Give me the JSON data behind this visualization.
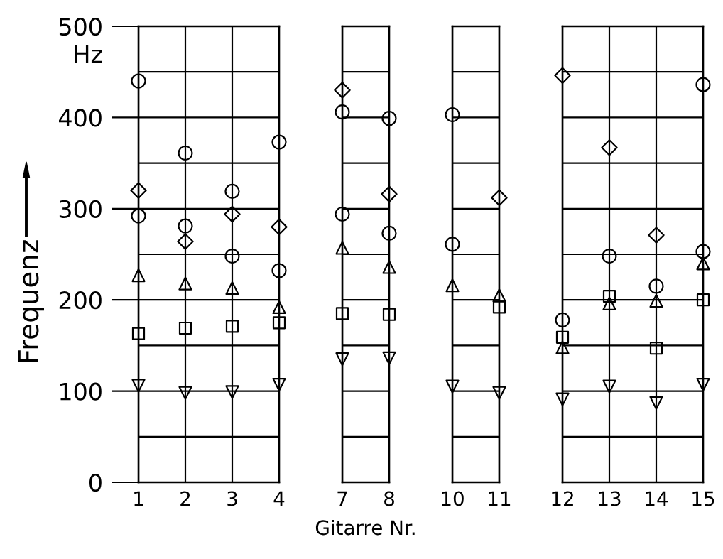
{
  "chart_data": [
    {
      "type": "scatter",
      "ylabel": "Frequenz",
      "annotations": [
        "Hz"
      ],
      "x": [
        1,
        2,
        3,
        4
      ],
      "xlim": [
        1,
        4
      ],
      "xticks": [
        1,
        2,
        3,
        4
      ],
      "ylim": [
        0,
        500
      ],
      "yticks": [
        0,
        {
          "value": 50,
          "label": null
        },
        100,
        {
          "value": 150,
          "label": null
        },
        200,
        {
          "value": 250,
          "label": null
        },
        300,
        {
          "value": 350,
          "label": null
        },
        400,
        {
          "value": 450,
          "label": null
        },
        500
      ],
      "grid": true,
      "series": [
        {
          "marker": "circle",
          "color": "#000000",
          "values": [
            440,
            361,
            319,
            373
          ]
        },
        {
          "marker": "diamond",
          "color": "#000000",
          "values": [
            320,
            264,
            294,
            280
          ]
        },
        {
          "marker": "circle",
          "color": "#000000",
          "values": [
            292,
            281,
            248,
            232
          ]
        },
        {
          "marker": "triangle",
          "color": "#000000",
          "values": [
            227,
            218,
            213,
            192
          ]
        },
        {
          "marker": "square",
          "color": "#000000",
          "values": [
            163,
            169,
            171,
            175
          ]
        },
        {
          "marker": "triangle_down",
          "color": "#000000",
          "values": [
            106,
            98,
            99,
            107
          ]
        }
      ]
    },
    {
      "type": "scatter",
      "xlabel": "Gitarre Nr.",
      "x": [
        7,
        8
      ],
      "xlim": [
        7,
        8
      ],
      "xticks": [
        7,
        8
      ],
      "ylim": [
        0,
        500
      ],
      "yticks": [
        0,
        {
          "value": 50,
          "label": null
        },
        100,
        {
          "value": 150,
          "label": null
        },
        200,
        {
          "value": 250,
          "label": null
        },
        300,
        {
          "value": 350,
          "label": null
        },
        400,
        {
          "value": 450,
          "label": null
        },
        500
      ],
      "grid": true,
      "tick_labels": "x",
      "series": [
        {
          "marker": "circle",
          "color": "#000000",
          "values": [
            406,
            399
          ]
        },
        {
          "marker": "diamond",
          "color": "#000000",
          "values": [
            430,
            316
          ]
        },
        {
          "marker": "circle",
          "color": "#000000",
          "values": [
            294,
            273
          ]
        },
        {
          "marker": "triangle",
          "color": "#000000",
          "values": [
            257,
            236
          ]
        },
        {
          "marker": "square",
          "color": "#000000",
          "values": [
            185,
            184
          ]
        },
        {
          "marker": "triangle_down",
          "color": "#000000",
          "values": [
            135,
            136
          ]
        }
      ]
    },
    {
      "type": "scatter",
      "x": [
        10,
        11
      ],
      "xlim": [
        10,
        11
      ],
      "xticks": [
        10,
        11
      ],
      "ylim": [
        0,
        500
      ],
      "yticks": [
        0,
        {
          "value": 50,
          "label": null
        },
        100,
        {
          "value": 150,
          "label": null
        },
        200,
        {
          "value": 250,
          "label": null
        },
        300,
        {
          "value": 350,
          "label": null
        },
        400,
        {
          "value": 450,
          "label": null
        },
        500
      ],
      "grid": true,
      "tick_labels": "x",
      "series": [
        {
          "marker": "circle",
          "color": "#000000",
          "values": [
            403,
            null
          ]
        },
        {
          "marker": "diamond",
          "color": "#000000",
          "values": [
            null,
            312
          ]
        },
        {
          "marker": "circle",
          "color": "#000000",
          "values": [
            261,
            null
          ]
        },
        {
          "marker": "triangle",
          "color": "#000000",
          "values": [
            216,
            205
          ]
        },
        {
          "marker": "square",
          "color": "#000000",
          "values": [
            null,
            192
          ]
        },
        {
          "marker": "triangle_down",
          "color": "#000000",
          "values": [
            105,
            98
          ]
        }
      ]
    },
    {
      "type": "scatter",
      "x": [
        12,
        13,
        14,
        15
      ],
      "xlim": [
        12,
        15
      ],
      "xticks": [
        12,
        13,
        14,
        15
      ],
      "ylim": [
        0,
        500
      ],
      "yticks": [
        0,
        {
          "value": 50,
          "label": null
        },
        100,
        {
          "value": 150,
          "label": null
        },
        200,
        {
          "value": 250,
          "label": null
        },
        300,
        {
          "value": 350,
          "label": null
        },
        400,
        {
          "value": 450,
          "label": null
        },
        500
      ],
      "grid": true,
      "tick_labels": "x",
      "series": [
        {
          "marker": "circle",
          "color": "#000000",
          "values": [
            null,
            null,
            null,
            436
          ]
        },
        {
          "marker": "diamond",
          "color": "#000000",
          "values": [
            446,
            367,
            271,
            null
          ]
        },
        {
          "marker": "circle",
          "color": "#000000",
          "values": [
            178,
            248,
            215,
            253
          ]
        },
        {
          "marker": "triangle",
          "color": "#000000",
          "values": [
            148,
            196,
            199,
            240
          ]
        },
        {
          "marker": "square",
          "color": "#000000",
          "values": [
            159,
            204,
            147,
            200
          ]
        },
        {
          "marker": "triangle_down",
          "color": "#000000",
          "values": [
            91,
            105,
            87,
            107
          ]
        }
      ]
    }
  ]
}
